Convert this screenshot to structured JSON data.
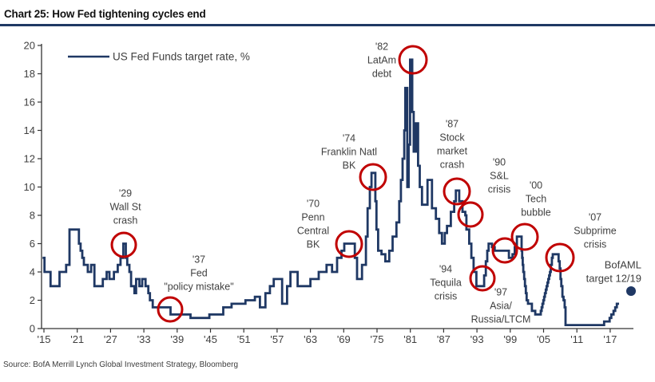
{
  "page": {
    "title": "Chart 25: How Fed tightening cycles end",
    "source": "Source:  BofA Merrill Lynch Global Investment Strategy, Bloomberg"
  },
  "colors": {
    "line": "#1f3864",
    "crisis_circle": "#c00000",
    "forecast_dot": "#1f3864",
    "axis": "#333333",
    "tick_text": "#404040",
    "annotation_text": "#404040",
    "title_rule": "#1f3864"
  },
  "chart_data": {
    "type": "line",
    "title": "Chart 25: How Fed tightening cycles end",
    "legend": "US Fed Funds target rate, %",
    "xlabel": "",
    "ylabel": "",
    "ylim": [
      0,
      20
    ],
    "y_ticks": [
      0,
      2,
      4,
      6,
      8,
      10,
      12,
      14,
      16,
      18,
      20
    ],
    "x_tick_labels": [
      "'15",
      "'21",
      "'27",
      "'33",
      "'39",
      "'45",
      "'51",
      "'57",
      "'63",
      "'69",
      "'75",
      "'81",
      "'87",
      "'93",
      "'99",
      "'05",
      "'11",
      "'17"
    ],
    "x_tick_start_year": 1915,
    "x_tick_step_years": 6,
    "grid": false,
    "legend_position": "top-left",
    "series": [
      {
        "name": "US Fed Funds target rate, %",
        "style": "step",
        "points": [
          [
            1914.75,
            5
          ],
          [
            1915.1,
            4
          ],
          [
            1916.2,
            3
          ],
          [
            1917.8,
            4
          ],
          [
            1919.0,
            4.5
          ],
          [
            1919.6,
            7
          ],
          [
            1921.3,
            6
          ],
          [
            1921.6,
            5.5
          ],
          [
            1921.9,
            5
          ],
          [
            1922.2,
            4.5
          ],
          [
            1922.9,
            4
          ],
          [
            1923.5,
            4.5
          ],
          [
            1924.1,
            3
          ],
          [
            1925.6,
            3.5
          ],
          [
            1926.3,
            4
          ],
          [
            1926.8,
            3.5
          ],
          [
            1927.6,
            4
          ],
          [
            1928.3,
            4.5
          ],
          [
            1928.8,
            5
          ],
          [
            1929.3,
            6
          ],
          [
            1929.75,
            5
          ],
          [
            1930.0,
            4.5
          ],
          [
            1930.4,
            4
          ],
          [
            1930.7,
            3
          ],
          [
            1931.3,
            2.5
          ],
          [
            1931.6,
            3.5
          ],
          [
            1932.2,
            3
          ],
          [
            1932.7,
            3.5
          ],
          [
            1933.3,
            3
          ],
          [
            1933.8,
            2.5
          ],
          [
            1934.1,
            2
          ],
          [
            1934.6,
            1.5
          ],
          [
            1937.8,
            1
          ],
          [
            1941.4,
            0.75
          ],
          [
            1944.8,
            1
          ],
          [
            1947.3,
            1.5
          ],
          [
            1948.8,
            1.75
          ],
          [
            1951.3,
            2
          ],
          [
            1953.0,
            2.25
          ],
          [
            1953.9,
            1.5
          ],
          [
            1954.9,
            2.5
          ],
          [
            1955.7,
            3
          ],
          [
            1956.4,
            3.5
          ],
          [
            1957.9,
            1.75
          ],
          [
            1958.8,
            3
          ],
          [
            1959.4,
            4
          ],
          [
            1960.7,
            3
          ],
          [
            1963.0,
            3.5
          ],
          [
            1964.5,
            4
          ],
          [
            1965.9,
            4.5
          ],
          [
            1966.9,
            4
          ],
          [
            1967.8,
            5
          ],
          [
            1968.6,
            5.5
          ],
          [
            1969.1,
            6
          ],
          [
            1971.0,
            5
          ],
          [
            1971.4,
            3.5
          ],
          [
            1972.3,
            4.5
          ],
          [
            1973.0,
            6.5
          ],
          [
            1973.3,
            8.5
          ],
          [
            1973.7,
            10
          ],
          [
            1974.0,
            11
          ],
          [
            1974.7,
            9
          ],
          [
            1974.9,
            7
          ],
          [
            1975.2,
            5.5
          ],
          [
            1975.8,
            5.25
          ],
          [
            1976.5,
            4.75
          ],
          [
            1977.2,
            5.5
          ],
          [
            1977.8,
            6.5
          ],
          [
            1978.5,
            7.5
          ],
          [
            1979.0,
            9
          ],
          [
            1979.3,
            10.5
          ],
          [
            1979.6,
            12
          ],
          [
            1979.9,
            14
          ],
          [
            1980.1,
            17
          ],
          [
            1980.45,
            10
          ],
          [
            1980.7,
            13
          ],
          [
            1980.95,
            19
          ],
          [
            1981.35,
            15.3
          ],
          [
            1981.6,
            12.5
          ],
          [
            1982.0,
            14.5
          ],
          [
            1982.4,
            11.5
          ],
          [
            1982.7,
            10
          ],
          [
            1983.1,
            8.75
          ],
          [
            1984.1,
            10.5
          ],
          [
            1984.9,
            8.5
          ],
          [
            1985.6,
            7.75
          ],
          [
            1986.2,
            6.75
          ],
          [
            1986.7,
            6
          ],
          [
            1987.2,
            6.75
          ],
          [
            1987.6,
            7.25
          ],
          [
            1988.3,
            8.25
          ],
          [
            1988.9,
            9
          ],
          [
            1989.2,
            9.75
          ],
          [
            1989.8,
            9
          ],
          [
            1990.4,
            8.25
          ],
          [
            1990.9,
            8
          ],
          [
            1991.1,
            7
          ],
          [
            1991.6,
            6
          ],
          [
            1992.0,
            5
          ],
          [
            1992.4,
            4
          ],
          [
            1992.9,
            3
          ],
          [
            1994.3,
            3.75
          ],
          [
            1994.6,
            4.75
          ],
          [
            1994.85,
            5.5
          ],
          [
            1995.1,
            6
          ],
          [
            1995.7,
            5.75
          ],
          [
            1996.2,
            5.5
          ],
          [
            1998.75,
            5
          ],
          [
            1999.4,
            5.25
          ],
          [
            1999.8,
            5.75
          ],
          [
            2000.2,
            6.5
          ],
          [
            2001.05,
            5.5
          ],
          [
            2001.15,
            5
          ],
          [
            2001.25,
            4.5
          ],
          [
            2001.35,
            4
          ],
          [
            2001.5,
            3.5
          ],
          [
            2001.65,
            3
          ],
          [
            2001.8,
            2.5
          ],
          [
            2001.95,
            2
          ],
          [
            2002.2,
            1.75
          ],
          [
            2002.9,
            1.25
          ],
          [
            2003.5,
            1
          ],
          [
            2004.5,
            1.25
          ],
          [
            2004.65,
            1.5
          ],
          [
            2004.8,
            1.75
          ],
          [
            2004.95,
            2
          ],
          [
            2005.1,
            2.25
          ],
          [
            2005.25,
            2.5
          ],
          [
            2005.4,
            2.75
          ],
          [
            2005.55,
            3
          ],
          [
            2005.7,
            3.25
          ],
          [
            2005.85,
            3.5
          ],
          [
            2006.0,
            3.75
          ],
          [
            2006.15,
            4
          ],
          [
            2006.3,
            4.5
          ],
          [
            2006.5,
            5
          ],
          [
            2006.65,
            5.25
          ],
          [
            2007.7,
            4.75
          ],
          [
            2007.9,
            4.25
          ],
          [
            2008.05,
            3.5
          ],
          [
            2008.2,
            3
          ],
          [
            2008.4,
            2.25
          ],
          [
            2008.6,
            2
          ],
          [
            2008.8,
            1.5
          ],
          [
            2008.95,
            0.25
          ],
          [
            2015.9,
            0.5
          ],
          [
            2016.9,
            0.75
          ],
          [
            2017.2,
            1
          ],
          [
            2017.6,
            1.25
          ],
          [
            2017.9,
            1.5
          ],
          [
            2018.2,
            1.75
          ],
          [
            2018.6,
            1.75
          ]
        ]
      }
    ],
    "annotations": [
      {
        "id": "1929-wall-st-crash",
        "lines": [
          "'29",
          "Wall St",
          "crash"
        ],
        "text_x": 157,
        "text_y": 242,
        "circle": {
          "cx": 155,
          "cy": 307,
          "r": 15
        }
      },
      {
        "id": "1937-fed-policy-mistake",
        "lines": [
          "'37",
          "Fed",
          "\"policy mistake\""
        ],
        "text_x": 249,
        "text_y": 325,
        "circle": {
          "cx": 213,
          "cy": 388,
          "r": 15
        }
      },
      {
        "id": "1970-penn-central-bk",
        "lines": [
          "'70",
          "Penn",
          "Central",
          "BK"
        ],
        "text_x": 392,
        "text_y": 255,
        "circle": {
          "cx": 437,
          "cy": 306,
          "r": 16
        }
      },
      {
        "id": "1974-franklin-natl-bk",
        "lines": [
          "'74",
          "Franklin Natl",
          "BK"
        ],
        "text_x": 437,
        "text_y": 173,
        "circle": {
          "cx": 467,
          "cy": 222,
          "r": 16
        }
      },
      {
        "id": "1982-latam-debt",
        "lines": [
          "'82",
          "LatAm",
          "debt"
        ],
        "text_x": 478,
        "text_y": 58,
        "circle": {
          "cx": 517,
          "cy": 75,
          "r": 17
        }
      },
      {
        "id": "1987-stock-market-crash",
        "lines": [
          "'87",
          "Stock",
          "market",
          "crash"
        ],
        "text_x": 566,
        "text_y": 155,
        "circle": {
          "cx": 572,
          "cy": 240,
          "r": 16
        }
      },
      {
        "id": "1990-sl-crisis",
        "lines": [
          "'90",
          "S&L",
          "crisis"
        ],
        "text_x": 625,
        "text_y": 203,
        "circle": {
          "cx": 589,
          "cy": 269,
          "r": 15
        }
      },
      {
        "id": "1994-tequila-crisis",
        "lines": [
          "'94",
          "Tequila",
          "crisis"
        ],
        "text_x": 558,
        "text_y": 337,
        "circle": {
          "cx": 604,
          "cy": 349,
          "r": 15
        }
      },
      {
        "id": "1997-asia-russia-ltcm",
        "lines": [
          "'97",
          "Asia/",
          "Russia/LTCM"
        ],
        "text_x": 627,
        "text_y": 366,
        "circle": {
          "cx": 632,
          "cy": 314,
          "r": 15
        }
      },
      {
        "id": "2000-tech-bubble",
        "lines": [
          "'00",
          "Tech",
          "bubble"
        ],
        "text_x": 671,
        "text_y": 232,
        "circle": {
          "cx": 657,
          "cy": 297,
          "r": 16
        }
      },
      {
        "id": "2007-subprime-crisis",
        "lines": [
          "'07",
          "Subprime",
          "crisis"
        ],
        "text_x": 745,
        "text_y": 272,
        "circle": {
          "cx": 701,
          "cy": 323,
          "r": 17
        }
      }
    ],
    "forecast": {
      "lines": [
        "BofAML",
        "target 12/19"
      ],
      "text_right_x": 803,
      "text_y": 332,
      "dot": {
        "cx": 790,
        "cy": 365,
        "r": 6
      },
      "value": 2.6
    }
  }
}
